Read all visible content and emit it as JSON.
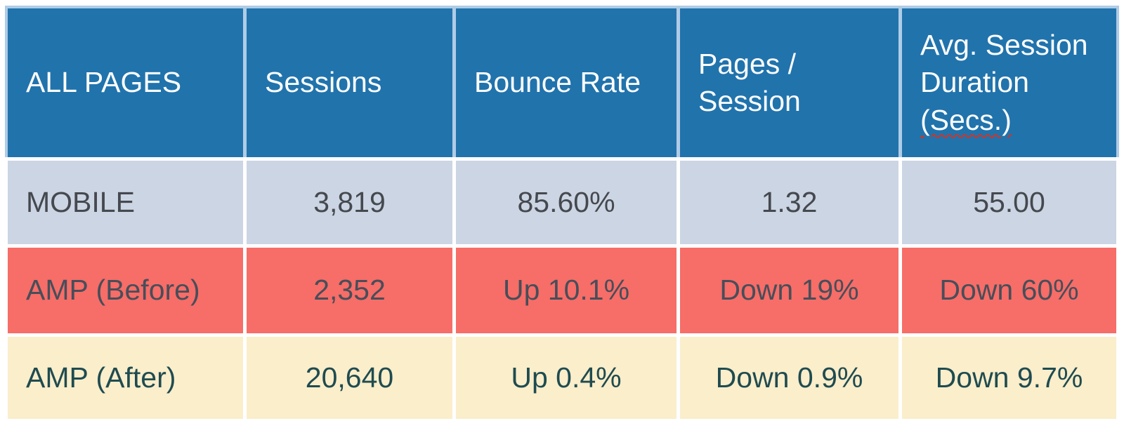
{
  "table": {
    "columns": [
      {
        "id": "label",
        "header_lines": [
          "ALL PAGES"
        ]
      },
      {
        "id": "sessions",
        "header_lines": [
          "Sessions"
        ]
      },
      {
        "id": "bounce_rate",
        "header_lines": [
          "Bounce Rate"
        ]
      },
      {
        "id": "pages_per_session",
        "header_lines": [
          "Pages /",
          "Session"
        ]
      },
      {
        "id": "avg_session_duration",
        "header_lines": [
          "Avg. Session",
          "Duration"
        ],
        "header_misspelled_word": "(Secs.)"
      }
    ],
    "rows": [
      {
        "theme": "mobile",
        "label": "MOBILE",
        "sessions": "3,819",
        "bounce_rate": "85.60%",
        "pages_per_session": "1.32",
        "avg_session_duration": "55.00"
      },
      {
        "theme": "before",
        "label": "AMP (Before)",
        "sessions": "2,352",
        "bounce_rate": "Up 10.1%",
        "pages_per_session": "Down 19%",
        "avg_session_duration": "Down 60%"
      },
      {
        "theme": "after",
        "label": "AMP (After)",
        "sessions": "20,640",
        "bounce_rate": "Up 0.4%",
        "pages_per_session": "Down 0.9%",
        "avg_session_duration": "Down 9.7%"
      }
    ],
    "colors": {
      "header_bg": "#2173AC",
      "header_border": "#AFCCE6",
      "header_text": "#FDFEFE",
      "mobile_bg": "#CCD5E3",
      "mobile_text": "#45494F",
      "before_bg": "#F76D68",
      "before_text": "#474E59",
      "after_bg": "#FAEECB",
      "after_text": "#1F4B50",
      "spellcheck": "#C9372C"
    }
  },
  "chart_data": {
    "type": "table",
    "title": "",
    "columns": [
      "ALL PAGES",
      "Sessions",
      "Bounce Rate",
      "Pages / Session",
      "Avg. Session Duration (Secs.)"
    ],
    "rows": [
      [
        "MOBILE",
        "3,819",
        "85.60%",
        "1.32",
        "55.00"
      ],
      [
        "AMP (Before)",
        "2,352",
        "Up 10.1%",
        "Down 19%",
        "Down 60%"
      ],
      [
        "AMP (After)",
        "20,640",
        "Up 0.4%",
        "Down 0.9%",
        "Down 9.7%"
      ]
    ],
    "notes": {
      "sessions_numeric": [
        3819,
        2352,
        20640
      ],
      "mobile_baseline": {
        "bounce_rate_pct": 85.6,
        "pages_per_session": 1.32,
        "avg_session_duration_secs": 55.0
      },
      "amp_before_vs_baseline": {
        "bounce_rate": "+10.1%",
        "pages_per_session": "-19%",
        "avg_session_duration": "-60%"
      },
      "amp_after_vs_baseline": {
        "bounce_rate": "+0.4%",
        "pages_per_session": "-0.9%",
        "avg_session_duration": "-9.7%"
      }
    }
  }
}
